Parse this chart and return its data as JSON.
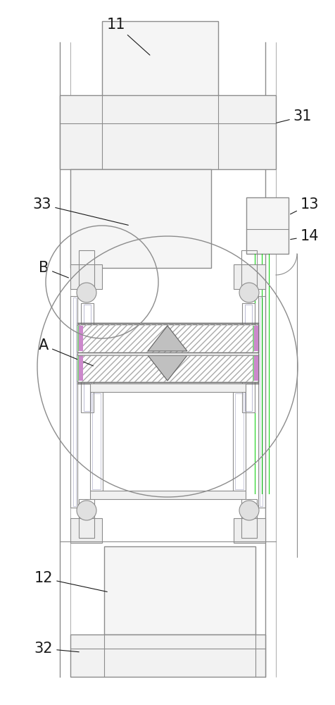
{
  "bg": "#ffffff",
  "lc": "#8c8c8c",
  "lc2": "#a0a0c0",
  "dc": "#606060",
  "gc": "#00cc00",
  "fig_w": 4.77,
  "fig_h": 10.0,
  "dpi": 100
}
